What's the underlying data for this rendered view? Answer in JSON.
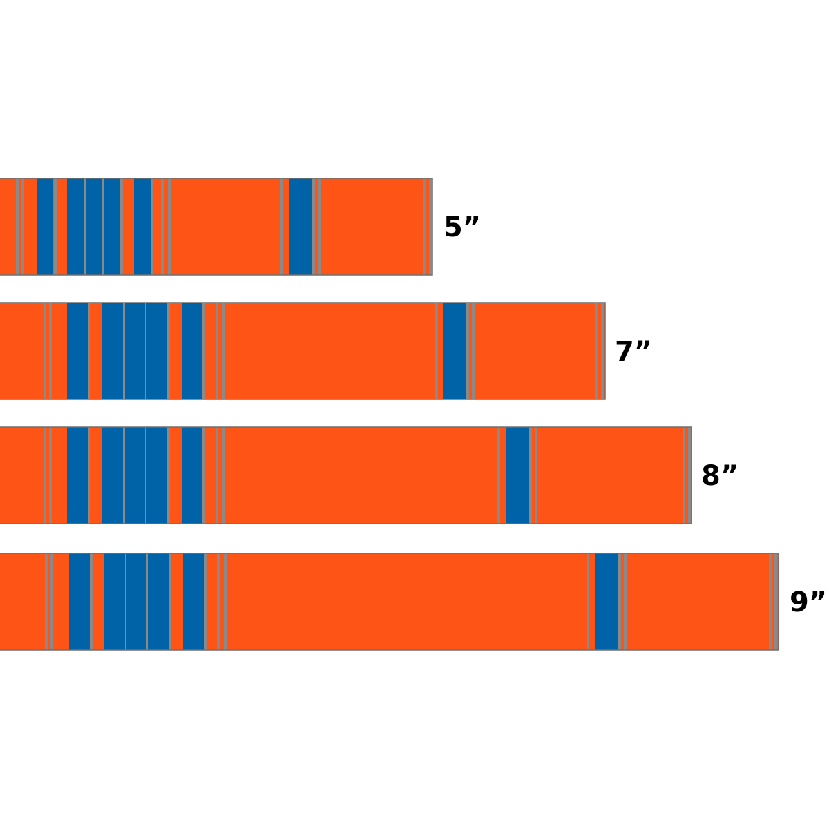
{
  "colors": {
    "background": "#ffffff",
    "stripe_base": "#fe5516",
    "stripe_blue": "#0062a7",
    "stripe_gray": "#8a8a8a",
    "outline": "#6f6f6f",
    "label": "#000000"
  },
  "bands": [
    {
      "label": "5”"
    },
    {
      "label": "7”"
    },
    {
      "label": "8”"
    },
    {
      "label": "9”"
    }
  ]
}
